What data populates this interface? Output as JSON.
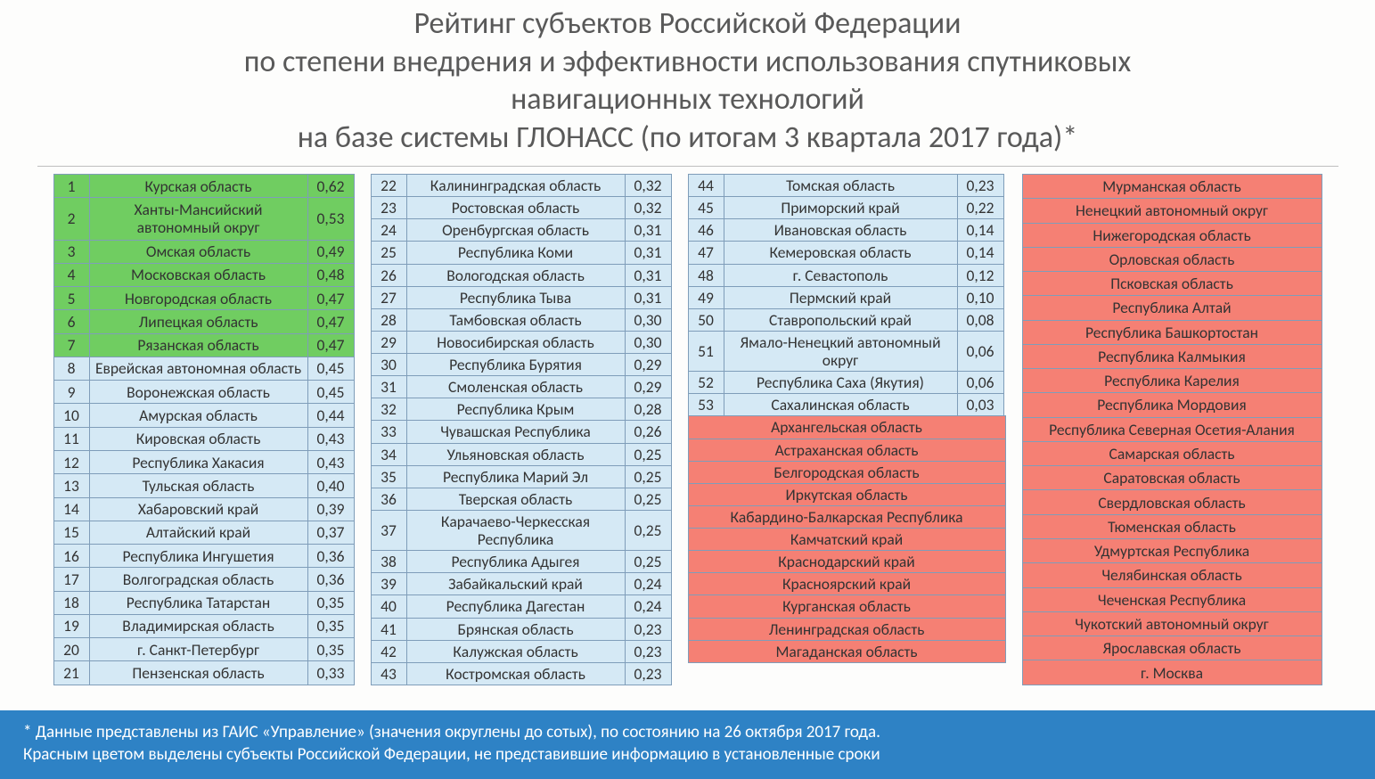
{
  "title_lines": [
    "Рейтинг субъектов Российской Федерации",
    "по степени внедрения и эффективности использования спутниковых",
    "навигационных технологий",
    "на базе системы ГЛОНАСС (по итогам 3 квартала 2017 года)*"
  ],
  "colors": {
    "green": "#70cd61",
    "blue": "#d5e9f5",
    "red": "#f58074",
    "border": "#7f9db9",
    "footer_bg": "#2e82c5",
    "header_text": "#595959"
  },
  "col1": [
    {
      "rank": "1",
      "name": "Курская область",
      "val": "0,62",
      "cls": "green"
    },
    {
      "rank": "2",
      "name": "Ханты-Мансийский автономный округ",
      "val": "0,53",
      "cls": "green"
    },
    {
      "rank": "3",
      "name": "Омская область",
      "val": "0,49",
      "cls": "green"
    },
    {
      "rank": "4",
      "name": "Московская область",
      "val": "0,48",
      "cls": "green"
    },
    {
      "rank": "5",
      "name": "Новгородская область",
      "val": "0,47",
      "cls": "green"
    },
    {
      "rank": "6",
      "name": "Липецкая область",
      "val": "0,47",
      "cls": "green"
    },
    {
      "rank": "7",
      "name": "Рязанская область",
      "val": "0,47",
      "cls": "green"
    },
    {
      "rank": "8",
      "name": "Еврейская автономная область",
      "val": "0,45",
      "cls": "blue"
    },
    {
      "rank": "9",
      "name": "Воронежская область",
      "val": "0,45",
      "cls": "blue"
    },
    {
      "rank": "10",
      "name": "Амурская область",
      "val": "0,44",
      "cls": "blue"
    },
    {
      "rank": "11",
      "name": "Кировская область",
      "val": "0,43",
      "cls": "blue"
    },
    {
      "rank": "12",
      "name": "Республика Хакасия",
      "val": "0,43",
      "cls": "blue"
    },
    {
      "rank": "13",
      "name": "Тульская область",
      "val": "0,40",
      "cls": "blue"
    },
    {
      "rank": "14",
      "name": "Хабаровский край",
      "val": "0,39",
      "cls": "blue"
    },
    {
      "rank": "15",
      "name": "Алтайский край",
      "val": "0,37",
      "cls": "blue"
    },
    {
      "rank": "16",
      "name": "Республика Ингушетия",
      "val": "0,36",
      "cls": "blue"
    },
    {
      "rank": "17",
      "name": "Волгоградская область",
      "val": "0,36",
      "cls": "blue"
    },
    {
      "rank": "18",
      "name": "Республика Татарстан",
      "val": "0,35",
      "cls": "blue"
    },
    {
      "rank": "19",
      "name": "Владимирская область",
      "val": "0,35",
      "cls": "blue"
    },
    {
      "rank": "20",
      "name": "г. Санкт-Петербург",
      "val": "0,35",
      "cls": "blue"
    },
    {
      "rank": "21",
      "name": "Пензенская область",
      "val": "0,33",
      "cls": "blue"
    }
  ],
  "col2": [
    {
      "rank": "22",
      "name": "Калининградская область",
      "val": "0,32",
      "cls": "blue"
    },
    {
      "rank": "23",
      "name": "Ростовская область",
      "val": "0,32",
      "cls": "blue"
    },
    {
      "rank": "24",
      "name": "Оренбургская область",
      "val": "0,31",
      "cls": "blue"
    },
    {
      "rank": "25",
      "name": "Республика Коми",
      "val": "0,31",
      "cls": "blue"
    },
    {
      "rank": "26",
      "name": "Вологодская область",
      "val": "0,31",
      "cls": "blue"
    },
    {
      "rank": "27",
      "name": "Республика Тыва",
      "val": "0,31",
      "cls": "blue"
    },
    {
      "rank": "28",
      "name": "Тамбовская область",
      "val": "0,30",
      "cls": "blue"
    },
    {
      "rank": "29",
      "name": "Новосибирская область",
      "val": "0,30",
      "cls": "blue"
    },
    {
      "rank": "30",
      "name": "Республика Бурятия",
      "val": "0,29",
      "cls": "blue"
    },
    {
      "rank": "31",
      "name": "Смоленская область",
      "val": "0,29",
      "cls": "blue"
    },
    {
      "rank": "32",
      "name": "Республика Крым",
      "val": "0,28",
      "cls": "blue"
    },
    {
      "rank": "33",
      "name": "Чувашская Республика",
      "val": "0,26",
      "cls": "blue"
    },
    {
      "rank": "34",
      "name": "Ульяновская область",
      "val": "0,25",
      "cls": "blue"
    },
    {
      "rank": "35",
      "name": "Республика Марий Эл",
      "val": "0,25",
      "cls": "blue"
    },
    {
      "rank": "36",
      "name": "Тверская область",
      "val": "0,25",
      "cls": "blue"
    },
    {
      "rank": "37",
      "name": "Карачаево-Черкесская Республика",
      "val": "0,25",
      "cls": "blue"
    },
    {
      "rank": "38",
      "name": "Республика Адыгея",
      "val": "0,25",
      "cls": "blue"
    },
    {
      "rank": "39",
      "name": "Забайкальский край",
      "val": "0,24",
      "cls": "blue"
    },
    {
      "rank": "40",
      "name": "Республика Дагестан",
      "val": "0,24",
      "cls": "blue"
    },
    {
      "rank": "41",
      "name": "Брянская область",
      "val": "0,23",
      "cls": "blue"
    },
    {
      "rank": "42",
      "name": "Калужская область",
      "val": "0,23",
      "cls": "blue"
    },
    {
      "rank": "43",
      "name": "Костромская область",
      "val": "0,23",
      "cls": "blue"
    }
  ],
  "col3_ranked": [
    {
      "rank": "44",
      "name": "Томская область",
      "val": "0,23",
      "cls": "blue"
    },
    {
      "rank": "45",
      "name": "Приморский край",
      "val": "0,22",
      "cls": "blue"
    },
    {
      "rank": "46",
      "name": "Ивановская область",
      "val": "0,14",
      "cls": "blue"
    },
    {
      "rank": "47",
      "name": "Кемеровская область",
      "val": "0,14",
      "cls": "blue"
    },
    {
      "rank": "48",
      "name": "г. Севастополь",
      "val": "0,12",
      "cls": "blue"
    },
    {
      "rank": "49",
      "name": "Пермский край",
      "val": "0,10",
      "cls": "blue"
    },
    {
      "rank": "50",
      "name": "Ставропольский край",
      "val": "0,08",
      "cls": "blue"
    },
    {
      "rank": "51",
      "name": "Ямало-Ненецкий автономный округ",
      "val": "0,06",
      "cls": "blue"
    },
    {
      "rank": "52",
      "name": "Республика Саха (Якутия)",
      "val": "0,06",
      "cls": "blue"
    },
    {
      "rank": "53",
      "name": "Сахалинская область",
      "val": "0,03",
      "cls": "blue"
    }
  ],
  "col3_red": [
    "Архангельская область",
    "Астраханская область",
    "Белгородская область",
    "Иркутская область",
    "Кабардино-Балкарская Республика",
    "Камчатский край",
    "Краснодарский край",
    "Красноярский край",
    "Курганская область",
    "Ленинградская область",
    "Магаданская область"
  ],
  "col4_red": [
    "Мурманская область",
    "Ненецкий автономный округ",
    "Нижегородская область",
    "Орловская область",
    "Псковская область",
    "Республика Алтай",
    "Республика Башкортостан",
    "Республика Калмыкия",
    "Республика Карелия",
    "Республика Мордовия",
    "Республика Северная Осетия-Алания",
    "Самарская область",
    "Саратовская область",
    "Свердловская область",
    "Тюменская область",
    "Удмуртская Республика",
    "Челябинская область",
    "Чеченская Республика",
    "Чукотский автономный округ",
    "Ярославская область",
    "г. Москва"
  ],
  "footer_lines": [
    "* Данные представлены из ГАИС «Управление» (значения округлены до сотых), по состоянию на 26 октября 2017 года.",
    "Красным цветом выделены субъекты Российской Федерации, не представившие информацию в установленные сроки"
  ]
}
